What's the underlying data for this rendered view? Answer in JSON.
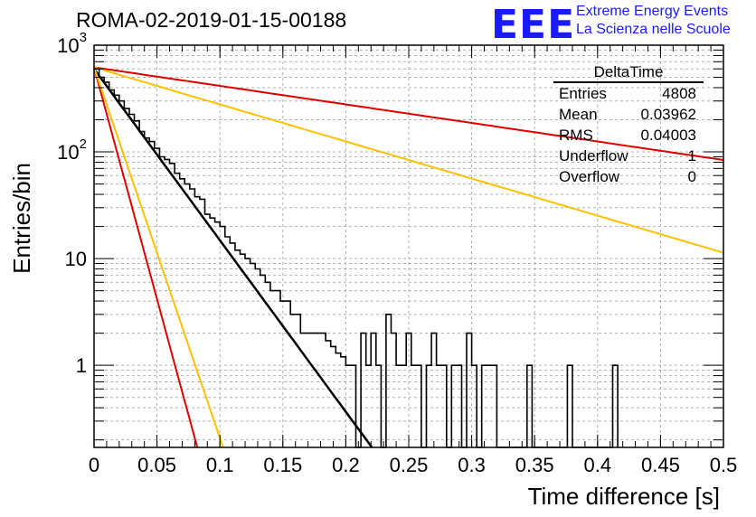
{
  "header": {
    "title": "ROMA-02-2019-01-15-00188",
    "logo_text": "EEE",
    "logo_line1": "Extreme Energy Events",
    "logo_line2": "La Scienza nelle Scuole",
    "logo_color": "#1a1aff"
  },
  "stats": {
    "name": "DeltaTime",
    "rows": [
      {
        "label": "Entries",
        "value": "4808"
      },
      {
        "label": "Mean",
        "value": "0.03962"
      },
      {
        "label": "RMS",
        "value": "0.04003"
      },
      {
        "label": "Underflow",
        "value": "1"
      },
      {
        "label": "Overflow",
        "value": "0"
      }
    ]
  },
  "chart_data": {
    "type": "histogram",
    "title": "ROMA-02-2019-01-15-00188",
    "xlabel": "Time difference [s]",
    "ylabel": "Entries/bin",
    "xlim": [
      0,
      0.5
    ],
    "ylim": [
      0.17,
      1000
    ],
    "yscale": "log",
    "grid": true,
    "x_ticks": [
      "0",
      "0.05",
      "0.1",
      "0.15",
      "0.2",
      "0.25",
      "0.3",
      "0.35",
      "0.4",
      "0.45",
      "0.5"
    ],
    "y_ticks": [
      "1",
      "10",
      "10^2",
      "10^3"
    ],
    "bin_width": 0.004,
    "histogram_values": [
      600,
      500,
      450,
      380,
      340,
      300,
      255,
      225,
      195,
      155,
      135,
      125,
      108,
      90,
      85,
      78,
      63,
      56,
      50,
      45,
      38,
      36,
      26,
      24,
      22,
      20,
      16,
      14,
      12,
      11,
      10,
      9,
      8,
      7,
      6,
      5,
      5,
      4,
      4,
      3,
      3,
      2,
      2,
      2,
      2,
      2,
      1.7,
      1.5,
      1.3,
      1.2,
      1,
      1,
      0,
      2,
      1,
      2,
      1,
      0,
      3,
      2,
      1,
      1,
      2,
      1,
      1,
      0,
      1,
      2,
      1,
      1,
      0,
      1,
      1,
      0,
      2,
      1,
      0,
      1,
      1,
      1,
      0,
      0,
      0,
      0,
      0,
      0,
      1,
      0,
      0,
      0,
      0,
      0,
      0,
      0,
      1,
      0,
      0,
      0,
      0,
      0,
      0,
      0,
      0,
      1
    ],
    "series": [
      {
        "y0": 600,
        "slope": 37,
        "color": "#000000"
      },
      {
        "y0": 620,
        "slope": 4,
        "color": "#dd0000"
      },
      {
        "y0": 620,
        "slope": 8,
        "color": "#ffc000"
      },
      {
        "y0": 620,
        "slope": 100,
        "color": "#dd0000"
      },
      {
        "y0": 620,
        "slope": 80,
        "color": "#ffc000"
      }
    ]
  }
}
